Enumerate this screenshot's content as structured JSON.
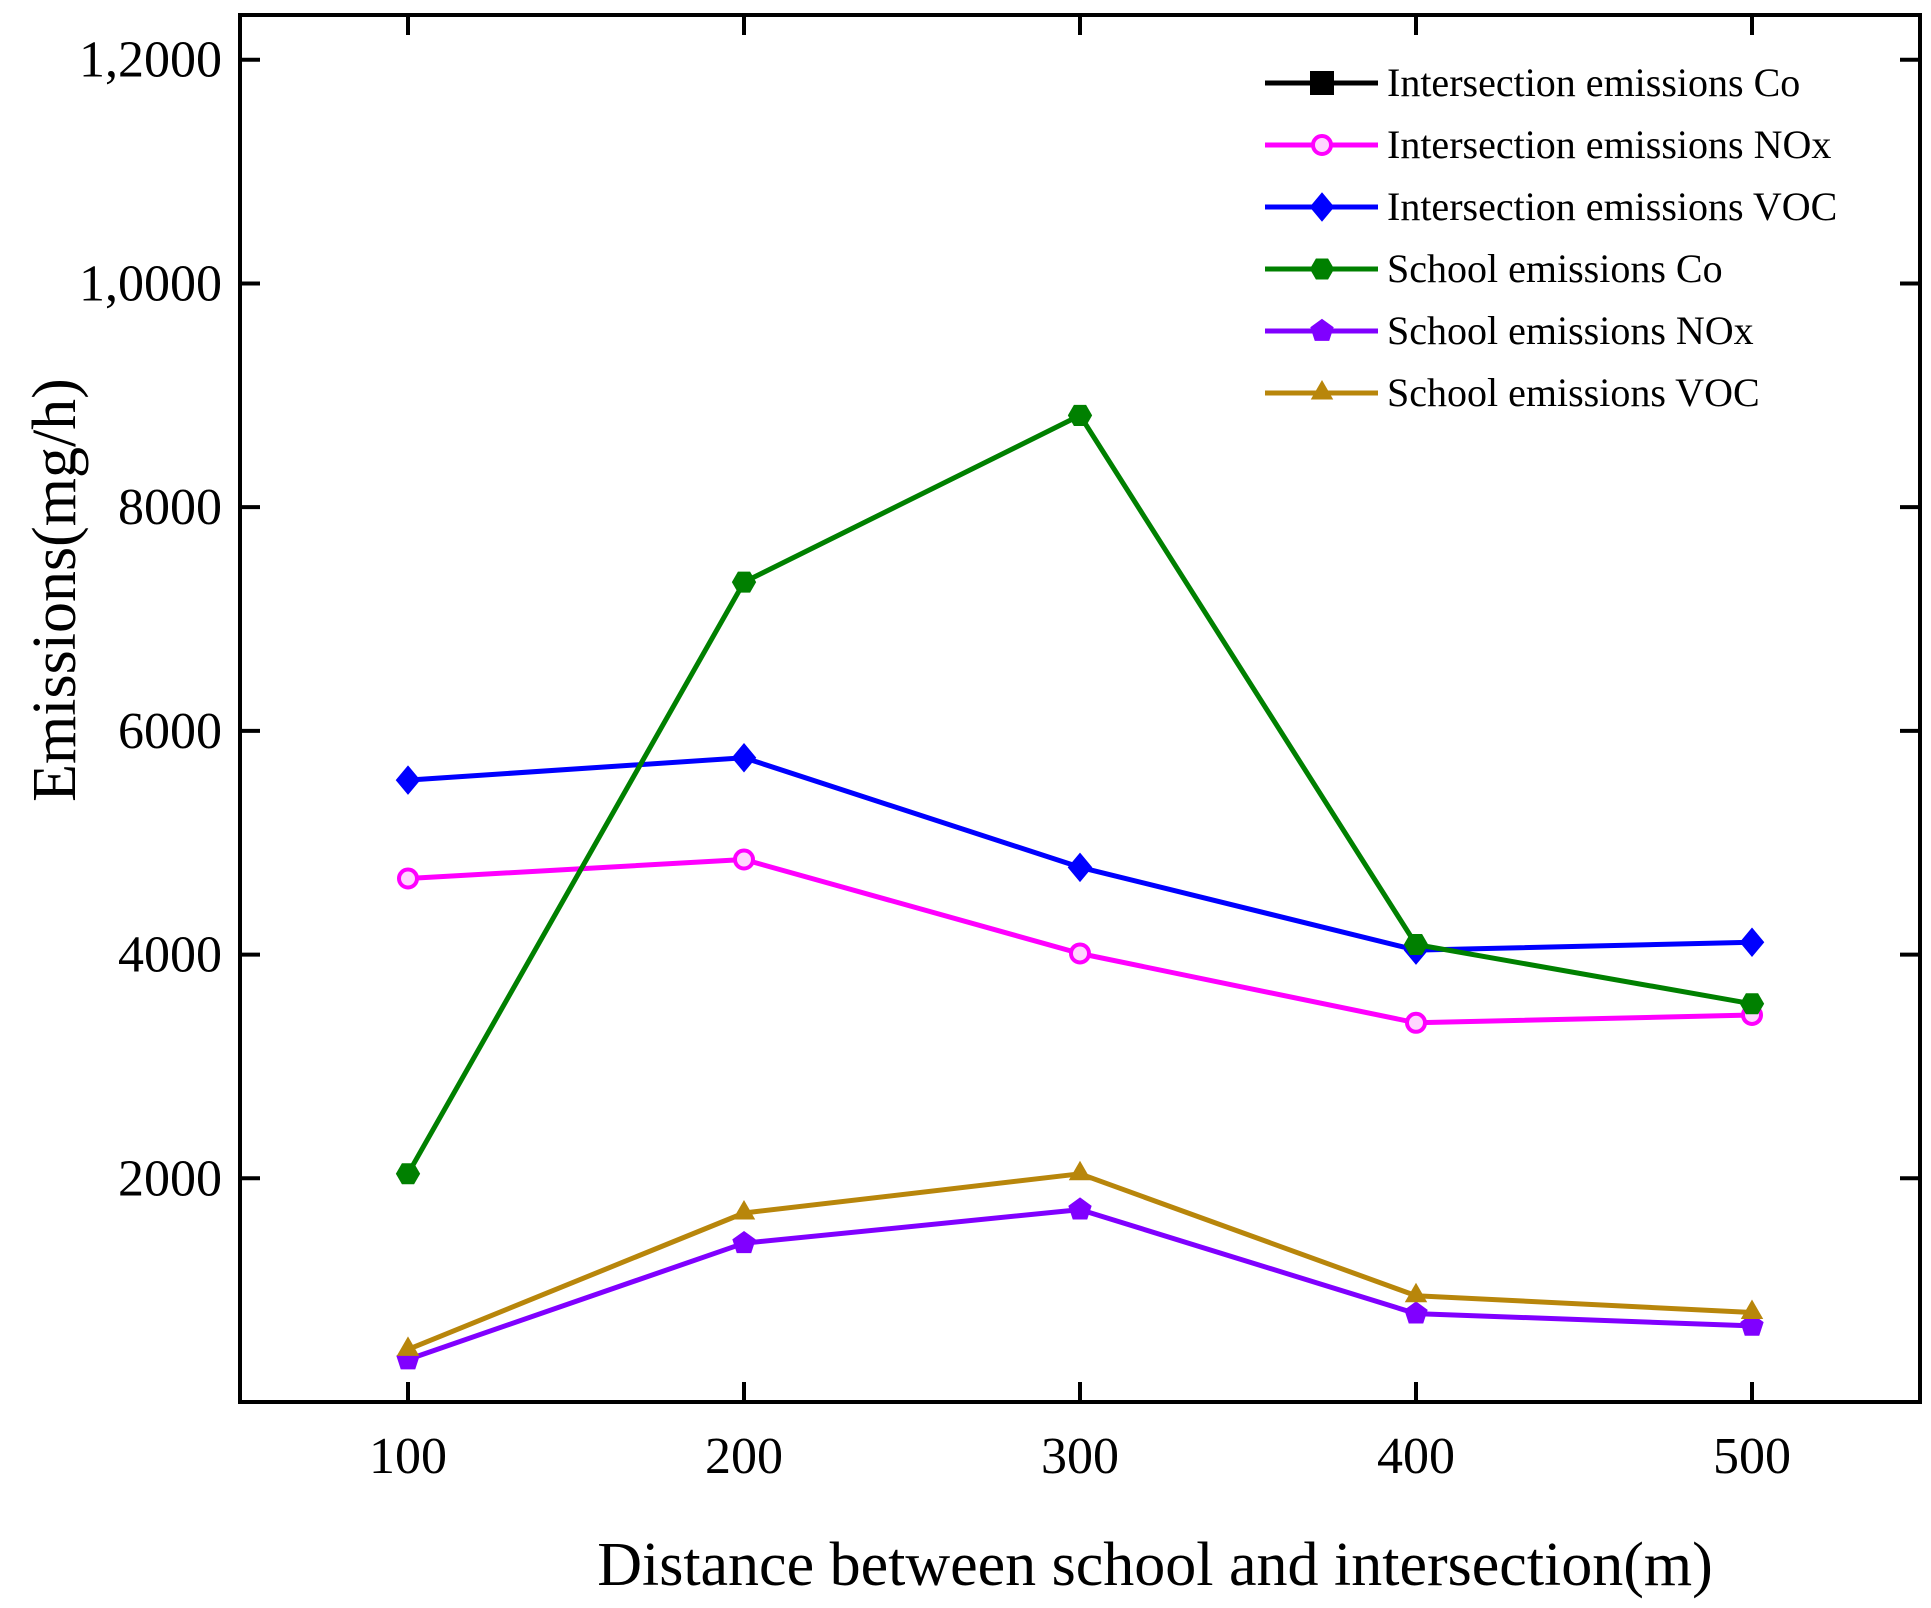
{
  "chart_data": {
    "type": "line",
    "title": "",
    "xlabel": "Distance between school and intersection(m)",
    "ylabel": "Emissions(mg/h)",
    "x": [
      100,
      200,
      300,
      400,
      500
    ],
    "xlim": [
      50,
      550
    ],
    "ylim": [
      0,
      12400
    ],
    "y_ticks": [
      {
        "value": 2000,
        "label": "2000"
      },
      {
        "value": 4000,
        "label": "4000"
      },
      {
        "value": 6000,
        "label": "6000"
      },
      {
        "value": 8000,
        "label": "8000"
      },
      {
        "value": 10000,
        "label": "1,0000"
      },
      {
        "value": 12000,
        "label": "1,2000"
      }
    ],
    "x_ticks": [
      {
        "value": 100,
        "label": "100"
      },
      {
        "value": 200,
        "label": "200"
      },
      {
        "value": 300,
        "label": "300"
      },
      {
        "value": 400,
        "label": "400"
      },
      {
        "value": 500,
        "label": "500"
      }
    ],
    "grid": false,
    "legend_position": "top-right",
    "series": [
      {
        "name": "Intersection emissions Co",
        "color": "#000000",
        "marker": "square",
        "values": [
          null,
          null,
          null,
          null,
          null
        ]
      },
      {
        "name": "Intersection emissions NOx",
        "color": "#ff00ff",
        "marker": "circle",
        "values": [
          4680,
          4850,
          4010,
          3390,
          3460
        ]
      },
      {
        "name": "Intersection emissions VOC",
        "color": "#0000ff",
        "marker": "diamond",
        "values": [
          5560,
          5760,
          4780,
          4040,
          4110
        ]
      },
      {
        "name": "School emissions Co",
        "color": "#008000",
        "marker": "hexagon",
        "values": [
          2040,
          7330,
          8820,
          4090,
          3560
        ]
      },
      {
        "name": "School emissions NOx",
        "color": "#8000ff",
        "marker": "pentagon",
        "values": [
          380,
          1420,
          1720,
          790,
          680
        ]
      },
      {
        "name": "School emissions VOC",
        "color": "#b8860b",
        "marker": "triangle",
        "values": [
          470,
          1690,
          2040,
          950,
          800
        ]
      }
    ]
  }
}
